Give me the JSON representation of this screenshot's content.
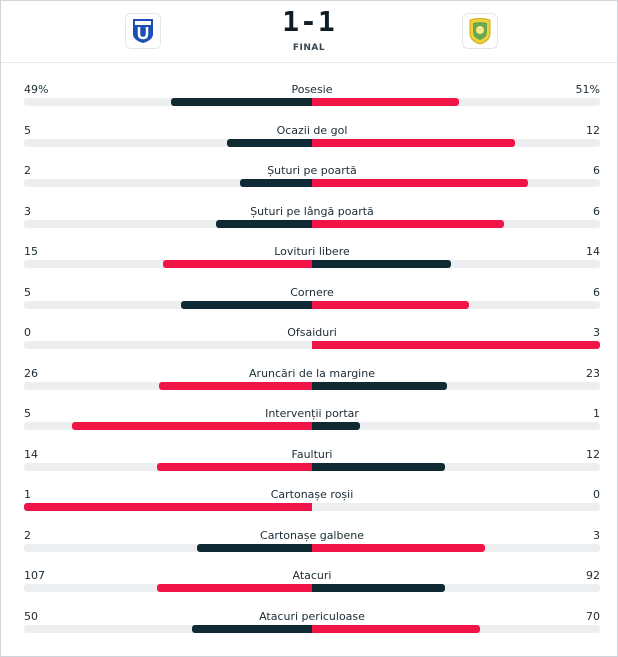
{
  "match": {
    "score": "1-1",
    "status": "FINAL",
    "home_logo_icon": "universitatea-craiova-crest-icon",
    "away_logo_icon": "petrolul-ploiesti-crest-icon"
  },
  "colors": {
    "winner": "#f01546",
    "loser": "#0f2a33",
    "track": "#eceef0"
  },
  "stats": [
    {
      "name": "Posesie",
      "home": "49%",
      "away": "51%",
      "home_value": 49,
      "away_value": 51
    },
    {
      "name": "Ocazii de gol",
      "home": "5",
      "away": "12",
      "home_value": 5,
      "away_value": 12
    },
    {
      "name": "Șuturi pe poartă",
      "home": "2",
      "away": "6",
      "home_value": 2,
      "away_value": 6
    },
    {
      "name": "Șuturi pe lângă poartă",
      "home": "3",
      "away": "6",
      "home_value": 3,
      "away_value": 6
    },
    {
      "name": "Lovituri libere",
      "home": "15",
      "away": "14",
      "home_value": 15,
      "away_value": 14
    },
    {
      "name": "Cornere",
      "home": "5",
      "away": "6",
      "home_value": 5,
      "away_value": 6
    },
    {
      "name": "Ofsaiduri",
      "home": "0",
      "away": "3",
      "home_value": 0,
      "away_value": 3
    },
    {
      "name": "Aruncări de la margine",
      "home": "26",
      "away": "23",
      "home_value": 26,
      "away_value": 23
    },
    {
      "name": "Intervenții portar",
      "home": "5",
      "away": "1",
      "home_value": 5,
      "away_value": 1
    },
    {
      "name": "Faulturi",
      "home": "14",
      "away": "12",
      "home_value": 14,
      "away_value": 12
    },
    {
      "name": "Cartonașe roșii",
      "home": "1",
      "away": "0",
      "home_value": 1,
      "away_value": 0
    },
    {
      "name": "Cartonașe galbene",
      "home": "2",
      "away": "3",
      "home_value": 2,
      "away_value": 3
    },
    {
      "name": "Atacuri",
      "home": "107",
      "away": "92",
      "home_value": 107,
      "away_value": 92
    },
    {
      "name": "Atacuri periculoase",
      "home": "50",
      "away": "70",
      "home_value": 50,
      "away_value": 70
    }
  ]
}
